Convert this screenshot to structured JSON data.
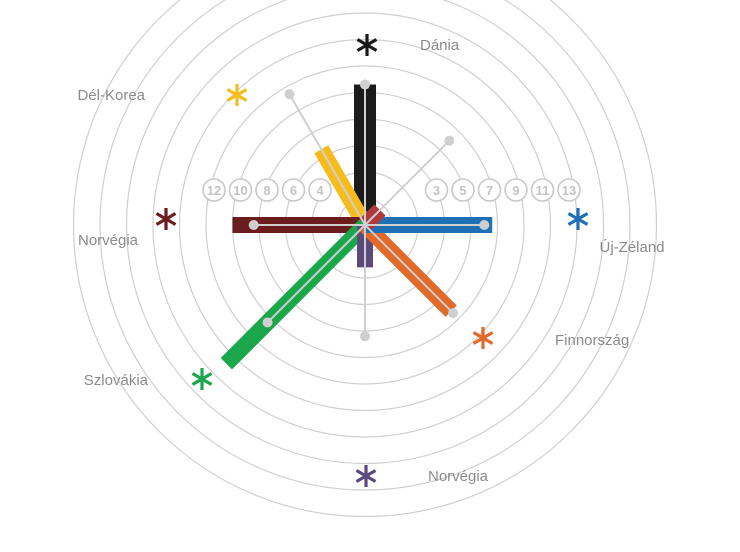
{
  "chart_data": {
    "type": "radial-bar",
    "ring_labels": {
      "left": [
        "4",
        "6",
        "8",
        "10",
        "12"
      ],
      "right": [
        "3",
        "5",
        "7",
        "9",
        "11",
        "13"
      ]
    },
    "ring_count": 11,
    "series": [
      {
        "country": "Dánia",
        "angle_deg": 90,
        "value": 5.3,
        "marker_value": 5.3,
        "color": "#1b1b1b",
        "label_side": "right"
      },
      {
        "country": "Dél-Korea",
        "angle_deg": 120,
        "value": 3.3,
        "marker_value": 5.7,
        "color": "#f7bc1b",
        "label_side": "left"
      },
      {
        "country": "Norvégia",
        "angle_deg": 180,
        "value": 5.0,
        "marker_value": 4.2,
        "color": "#6b1c1c",
        "label_side": "left"
      },
      {
        "country": "Szlovákia",
        "angle_deg": 225,
        "value": 7.4,
        "marker_value": 5.2,
        "color": "#1aa64a",
        "label_side": "left"
      },
      {
        "country": "Norvégia",
        "angle_deg": 270,
        "value": 1.6,
        "marker_value": 4.2,
        "color": "#5c4a7d",
        "label_side": "right"
      },
      {
        "country": "Finnország",
        "angle_deg": 315,
        "value": 4.6,
        "marker_value": 4.7,
        "color": "#e2692a",
        "label_side": "right"
      },
      {
        "country": "Új-Zéland",
        "angle_deg": 0,
        "value": 4.8,
        "marker_value": 4.5,
        "color": "#1f6fb5",
        "label_side": "right"
      },
      {
        "country": "",
        "angle_deg": 45,
        "value": 0.8,
        "marker_value": 4.5,
        "color": "#b03a3a",
        "label_side": "right"
      }
    ]
  }
}
